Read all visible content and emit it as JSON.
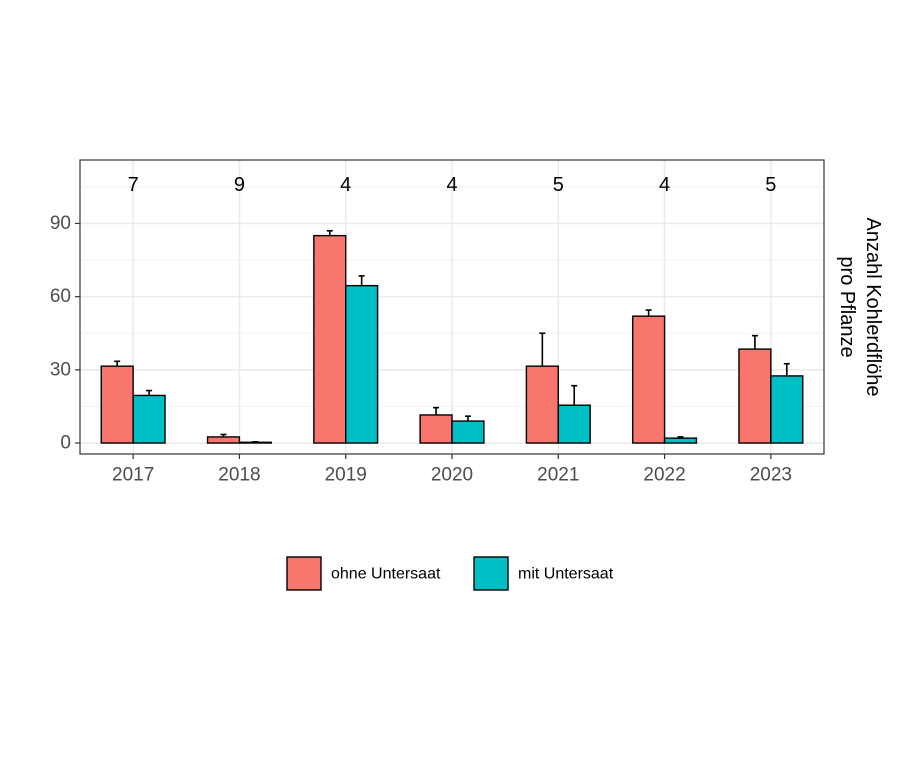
{
  "chart_data": {
    "type": "bar",
    "categories": [
      "2017",
      "2018",
      "2019",
      "2020",
      "2021",
      "2022",
      "2023"
    ],
    "series": [
      {
        "name": "ohne Untersaat",
        "color": "#F8766D",
        "values": [
          31.5,
          2.5,
          85,
          11.5,
          31.5,
          52,
          38.5
        ],
        "error_upper": [
          33.5,
          3.5,
          87,
          14.5,
          45,
          54.5,
          44
        ]
      },
      {
        "name": "mit Untersaat",
        "color": "#00BFC4",
        "values": [
          19.5,
          0.3,
          64.5,
          9,
          15.5,
          2,
          27.5
        ],
        "error_upper": [
          21.5,
          0.5,
          68.5,
          11,
          23.5,
          2.5,
          32.5
        ]
      }
    ],
    "counts": [
      "7",
      "9",
      "4",
      "4",
      "5",
      "4",
      "5"
    ],
    "ylabel_lines": [
      "Anzahl Kohlerdflöhe",
      "pro Pflanze"
    ],
    "ylim": [
      -4.5,
      116
    ],
    "yticks": [
      0,
      30,
      60,
      90
    ],
    "yticks_minor": [
      15,
      45,
      75,
      105
    ],
    "grid": true,
    "legend_position": "bottom"
  }
}
